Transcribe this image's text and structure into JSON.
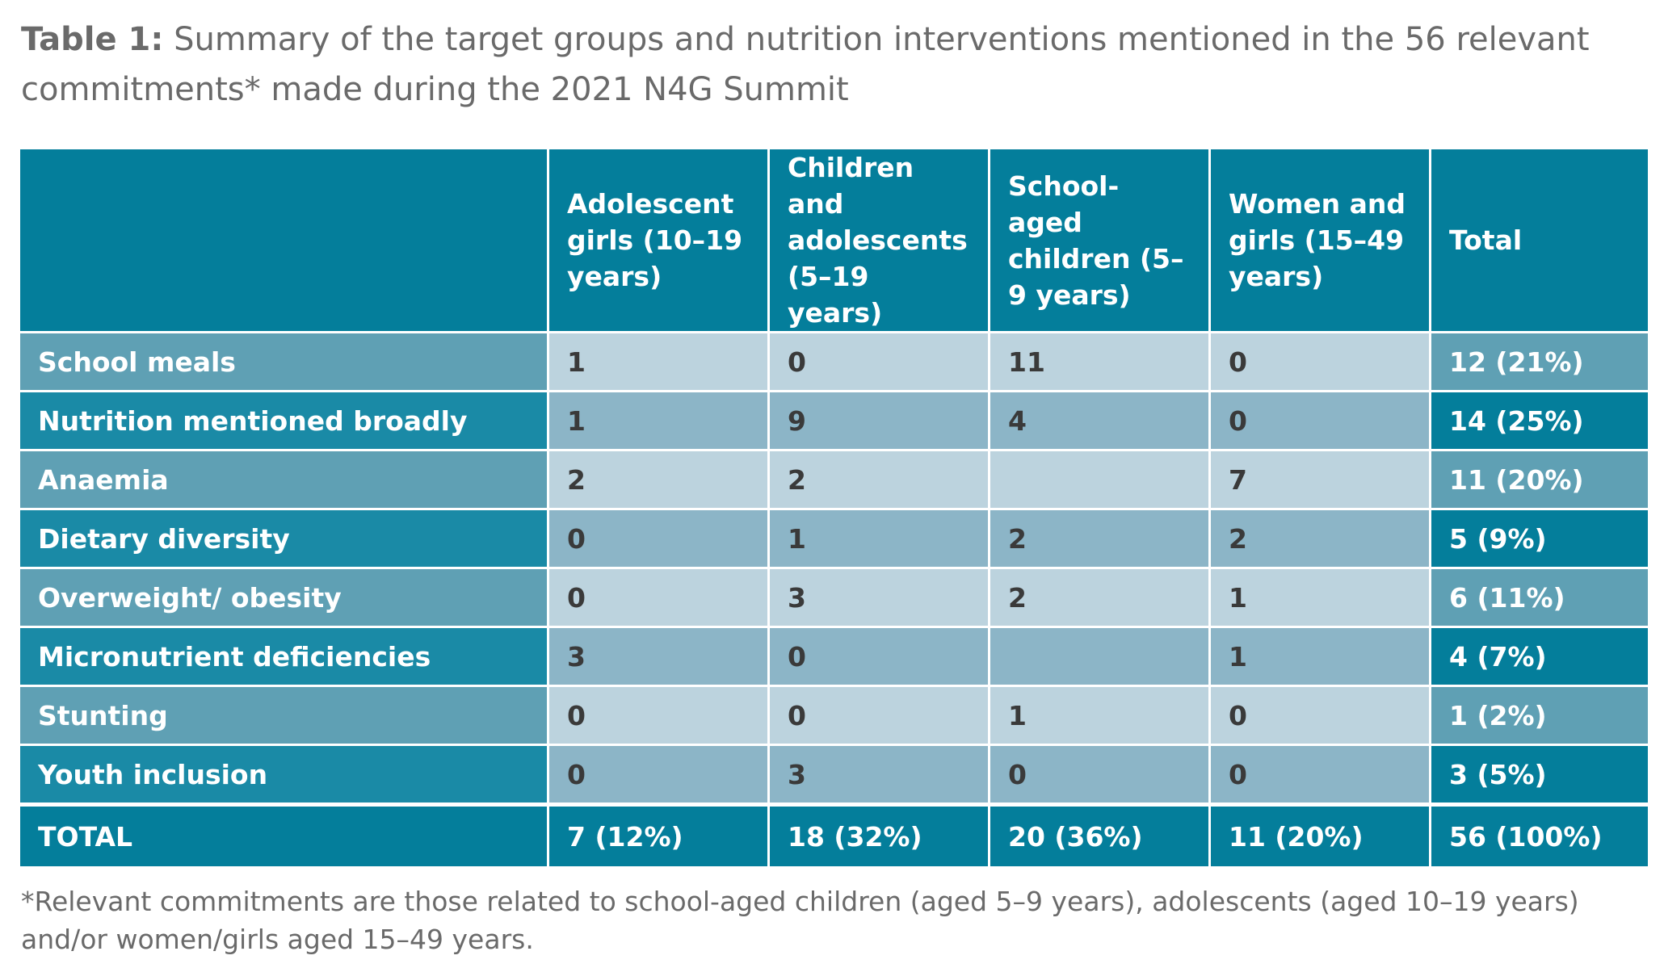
{
  "caption": {
    "label": "Table 1:",
    "text": " Summary of the target groups and nutrition interventions mentioned in the 56 relevant commitments* made during the 2021 N4G Summit"
  },
  "table": {
    "headers": [
      "",
      "Adolescent girls (10–19 years)",
      "Children and adolescents (5–19 years)",
      "School-aged children (5–9 years)",
      "Women and girls (15–49 years)",
      "Total"
    ],
    "rows": [
      {
        "label": "School meals",
        "values": [
          "1",
          "0",
          "11",
          "0"
        ],
        "total": "12 (21%)"
      },
      {
        "label": "Nutrition mentioned broadly",
        "values": [
          "1",
          "9",
          "4",
          "0"
        ],
        "total": "14 (25%)"
      },
      {
        "label": "Anaemia",
        "values": [
          "2",
          "2",
          "",
          "7"
        ],
        "total": "11 (20%)"
      },
      {
        "label": "Dietary diversity",
        "values": [
          "0",
          "1",
          "2",
          "2"
        ],
        "total": "5 (9%)"
      },
      {
        "label": "Overweight/ obesity",
        "values": [
          "0",
          "3",
          "2",
          "1"
        ],
        "total": "6 (11%)"
      },
      {
        "label": "Micronutrient deficiencies",
        "values": [
          "3",
          "0",
          "",
          "1"
        ],
        "total": "4 (7%)"
      },
      {
        "label": "Stunting",
        "values": [
          "0",
          "0",
          "1",
          "0"
        ],
        "total": "1 (2%)"
      },
      {
        "label": "Youth inclusion",
        "values": [
          "0",
          "3",
          "0",
          "0"
        ],
        "total": "3 (5%)"
      }
    ],
    "totals_row": {
      "label": "TOTAL",
      "values": [
        "7 (12%)",
        "18 (32%)",
        "20 (36%)",
        "11 (20%)"
      ],
      "total": "56 (100%)"
    }
  },
  "footnote": "*Relevant commitments are those related to school-aged children (aged 5–9 years), adolescents (aged 10–19 years) and/or women/girls aged 15–49 years.",
  "colors": {
    "header_teal": "#047e9b",
    "row_label_light": "#5fa0b4",
    "row_label_dark": "#1a8aa6",
    "cell_light": "#bcd3de",
    "cell_dark": "#8cb5c7",
    "caption_gray": "#6a6a6a"
  }
}
